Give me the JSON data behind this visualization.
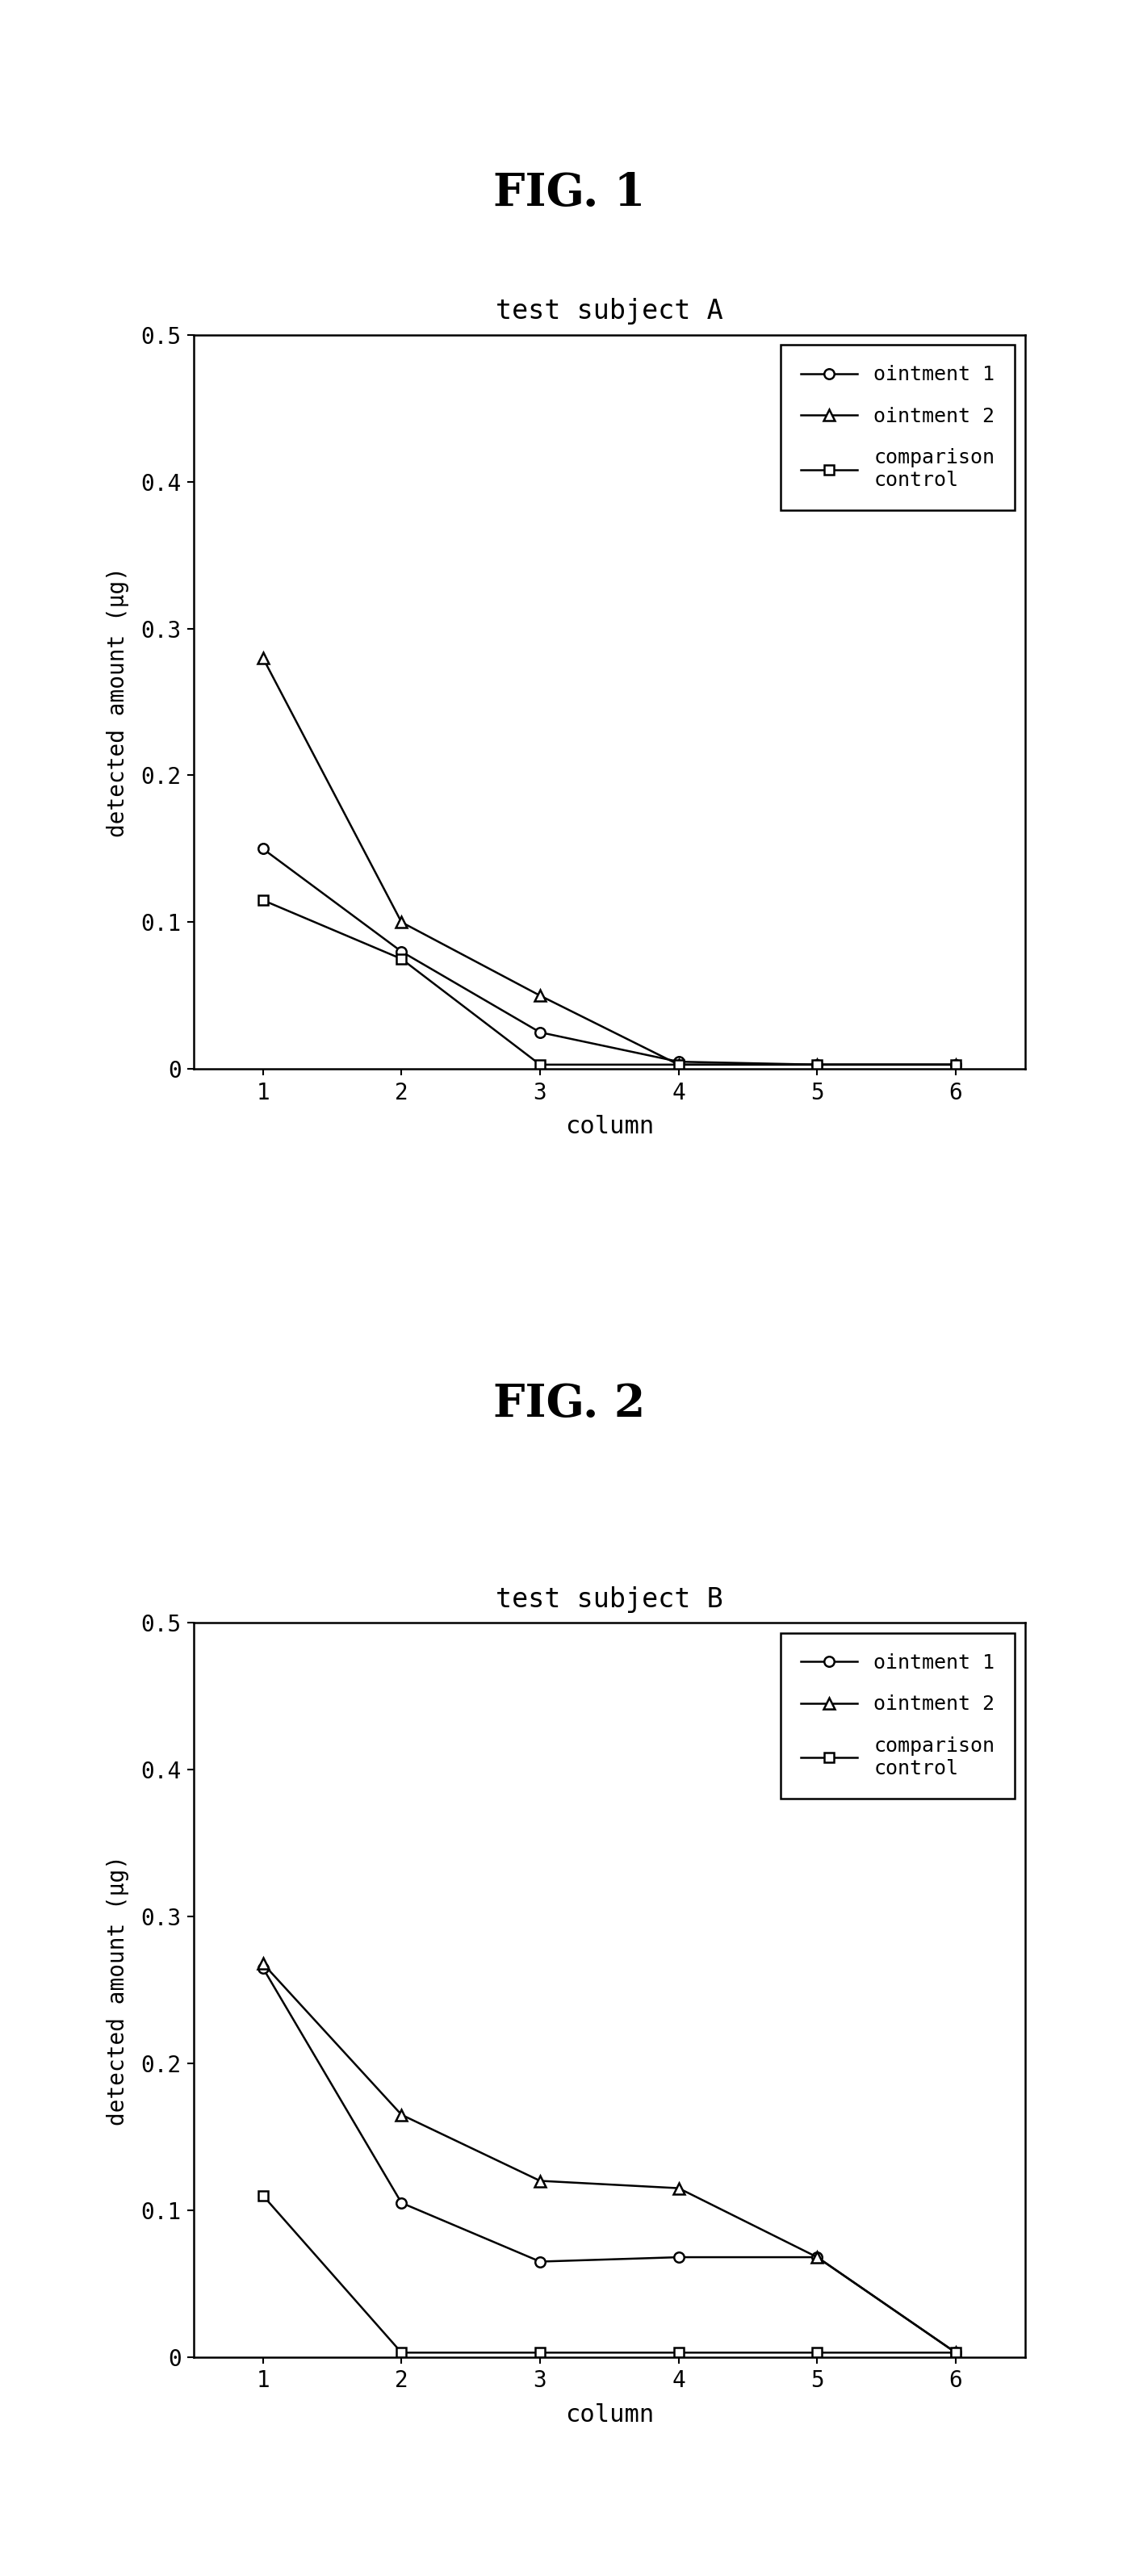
{
  "fig1_title": "FIG. 1",
  "fig2_title": "FIG. 2",
  "subtitle1": "test subject A",
  "subtitle2": "test subject B",
  "xlabel": "column",
  "ylabel": "detected amount (μg)",
  "x": [
    1,
    2,
    3,
    4,
    5,
    6
  ],
  "ylim": [
    0,
    0.5
  ],
  "yticks": [
    0,
    0.1,
    0.2,
    0.3,
    0.4,
    0.5
  ],
  "fig1_ointment1": [
    0.15,
    0.08,
    0.025,
    0.005,
    0.003,
    0.003
  ],
  "fig1_ointment2": [
    0.28,
    0.1,
    0.05,
    0.003,
    0.003,
    0.003
  ],
  "fig1_comparison": [
    0.115,
    0.075,
    0.003,
    0.003,
    0.003,
    0.003
  ],
  "fig2_ointment1": [
    0.265,
    0.105,
    0.065,
    0.068,
    0.068,
    0.003
  ],
  "fig2_ointment2": [
    0.268,
    0.165,
    0.12,
    0.115,
    0.068,
    0.003
  ],
  "fig2_comparison": [
    0.11,
    0.003,
    0.003,
    0.003,
    0.003,
    0.003
  ],
  "legend_labels": [
    "ointment 1",
    "ointment 2",
    "comparison\ncontrol"
  ],
  "background_color": "#ffffff",
  "line_color": "#000000"
}
